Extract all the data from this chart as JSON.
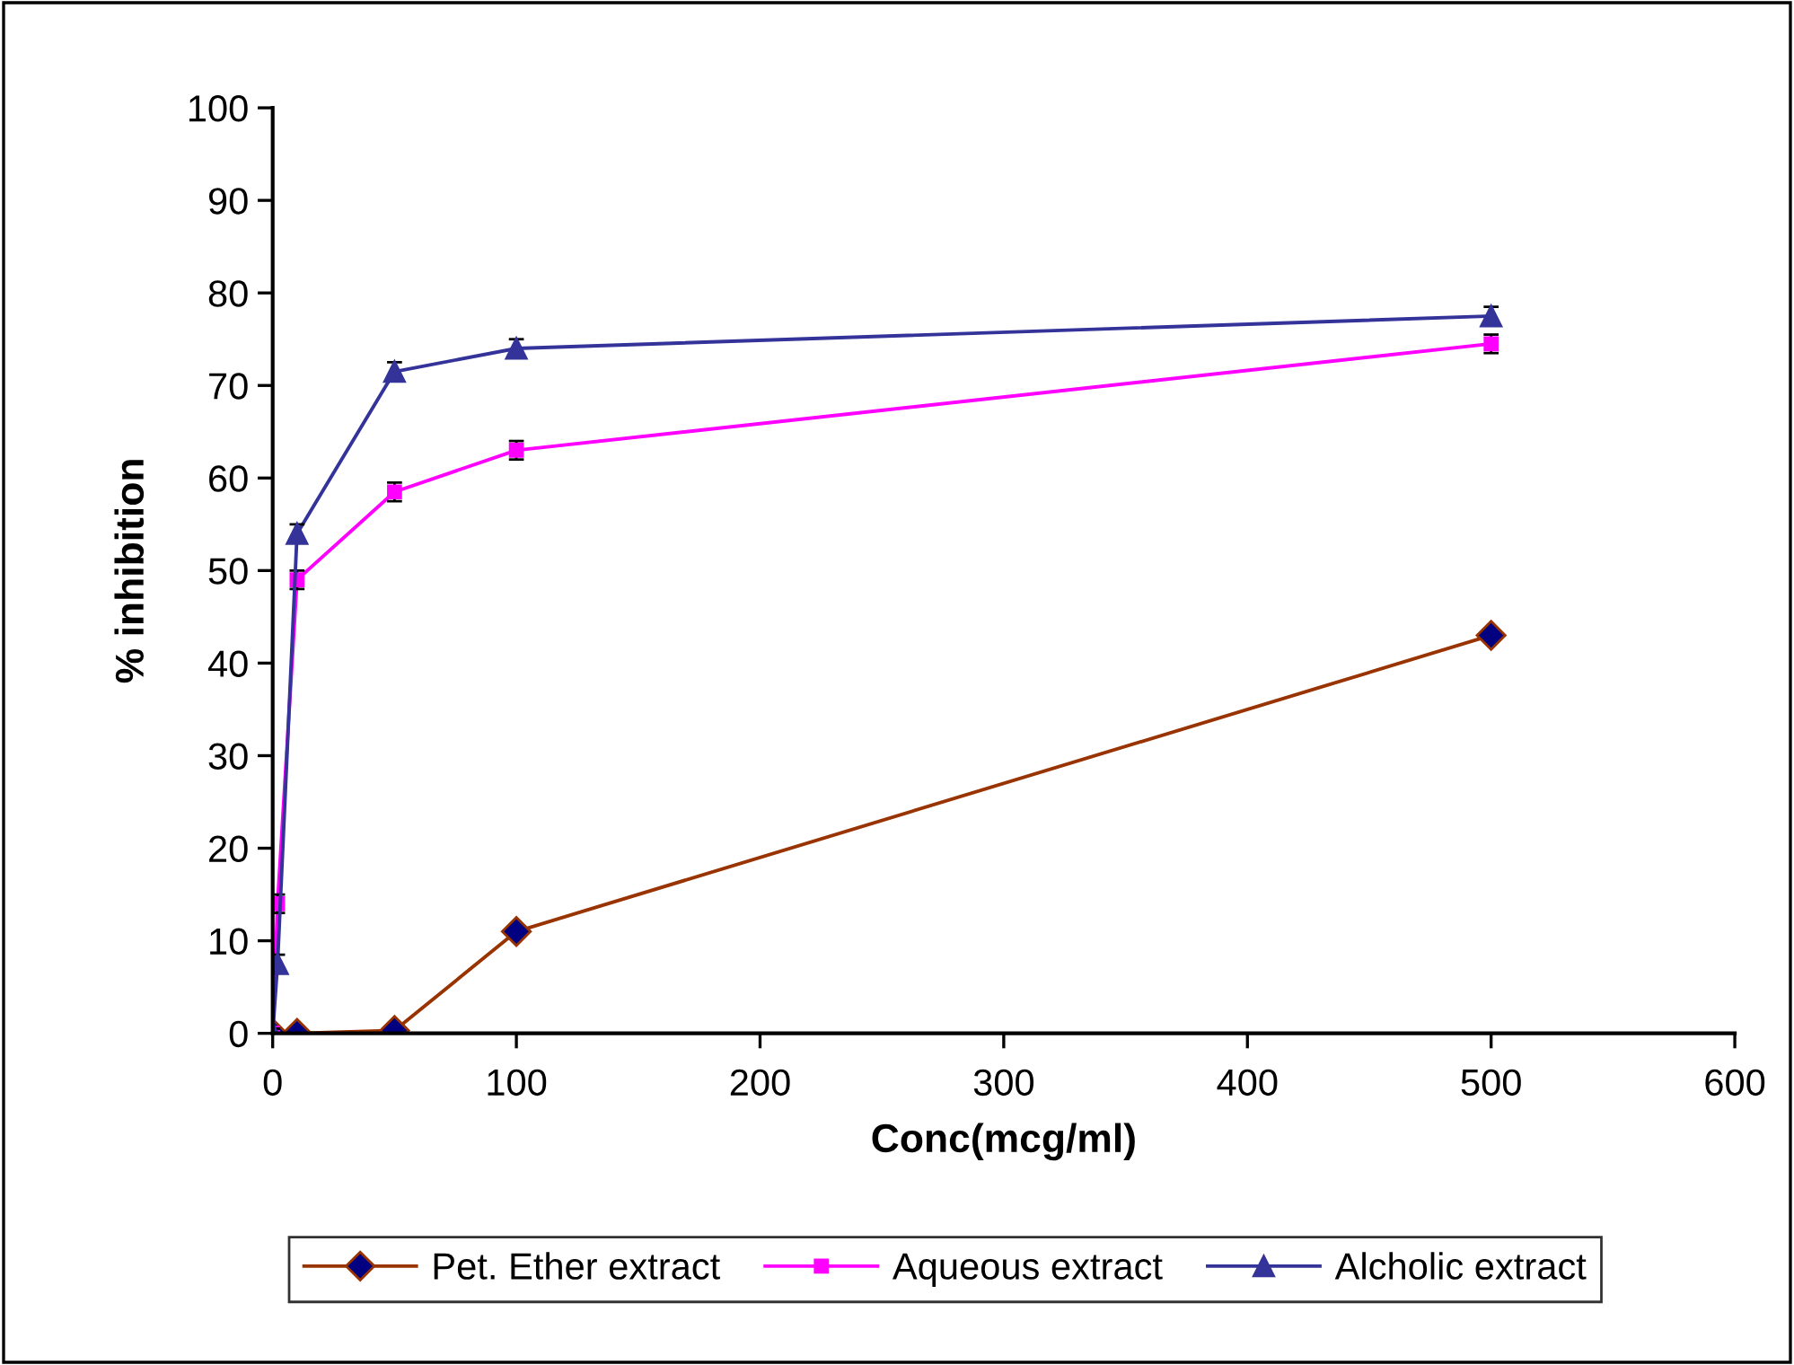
{
  "chart_data": {
    "type": "line",
    "xlabel": "Conc(mcg/ml)",
    "ylabel": "% inhibition",
    "xlim": [
      0,
      600
    ],
    "xticks": [
      0,
      100,
      200,
      300,
      400,
      500,
      600
    ],
    "ylim": [
      0,
      100
    ],
    "yticks": [
      0,
      10,
      20,
      30,
      40,
      50,
      60,
      70,
      80,
      90,
      100
    ],
    "grid": false,
    "legend": "bottom",
    "line_style": "solid",
    "series": [
      {
        "name": "Pet. Ether extract",
        "color": "#993300",
        "marker": "diamond",
        "x": [
          0,
          10,
          50,
          100,
          500
        ],
        "values": [
          0,
          0,
          0.3,
          11,
          43
        ]
      },
      {
        "name": "Aqueous extract",
        "color": "#ff00ff",
        "marker": "square",
        "x": [
          0,
          2,
          10,
          50,
          100,
          500
        ],
        "values": [
          0,
          14,
          49,
          58.5,
          63,
          74.5
        ],
        "errors": [
          0.5,
          1,
          1,
          1,
          1,
          1
        ]
      },
      {
        "name": "Alcholic extract",
        "color": "#333399",
        "marker": "triangle",
        "x": [
          0,
          2,
          10,
          50,
          100,
          500
        ],
        "values": [
          0,
          7.5,
          54,
          71.5,
          74,
          77.5
        ],
        "errors": [
          0.5,
          1,
          1,
          1,
          1,
          1
        ]
      }
    ]
  }
}
